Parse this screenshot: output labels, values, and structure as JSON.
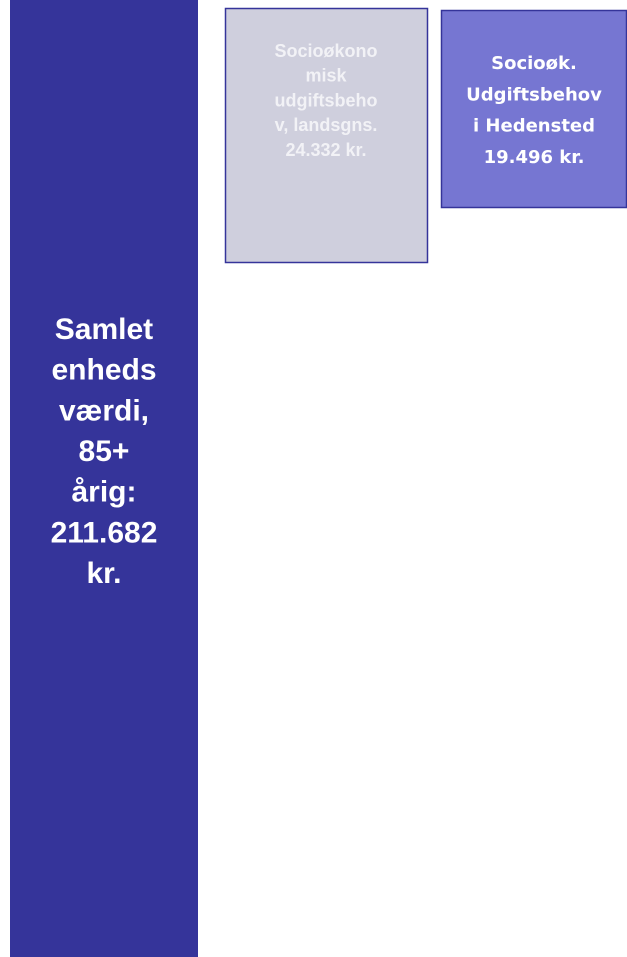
{
  "boxes": [
    {
      "lines": [
        "Samlet",
        "enheds",
        "værdi,",
        "85+",
        "årig:",
        "211.682",
        "kr."
      ]
    },
    {
      "lines": [
        "Socioøkono",
        "misk",
        "udgiftsbeho",
        "v, landsgns.",
        "24.332 kr."
      ]
    },
    {
      "lines": [
        "Socioøk.",
        "Udgiftsbehov",
        "i Hedensted",
        "19.496 kr."
      ]
    }
  ]
}
